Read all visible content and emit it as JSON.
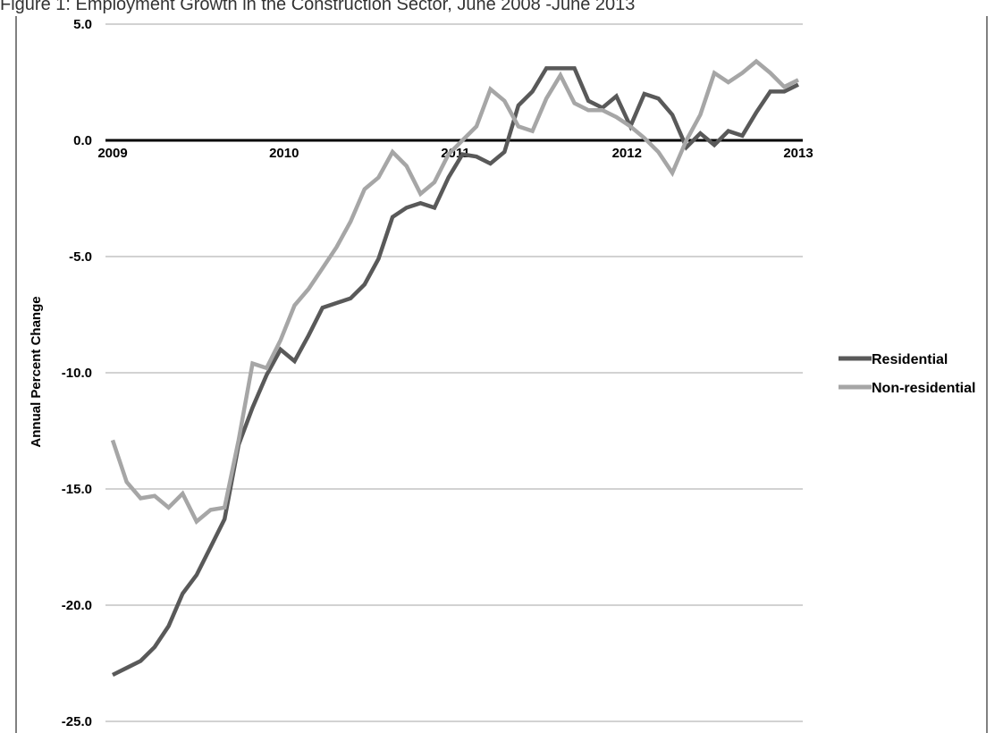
{
  "chart_data": {
    "type": "line",
    "title": "Figure 1: Employment Growth in the Construction Sector, June 2008 -June 2013",
    "xlabel": "",
    "ylabel": "Annual Percent Change",
    "ylim": [
      -25.0,
      5.0
    ],
    "ytick_labels": [
      "5.0",
      "0.0",
      "-5.0",
      "-10.0",
      "-15.0",
      "-20.0",
      "-25.0"
    ],
    "xtick_labels": [
      "2009",
      "2010",
      "2011",
      "2012",
      "2013"
    ],
    "grid": "horizontal",
    "legend_position": "right",
    "x_start_year": 2009,
    "x_end_year": 2013,
    "series": [
      {
        "name": "Residential",
        "color": "#595959",
        "values": [
          -23.0,
          -22.7,
          -22.4,
          -21.8,
          -20.9,
          -19.5,
          -18.7,
          -17.5,
          -16.3,
          -13.1,
          -11.5,
          -10.1,
          -9.0,
          -9.5,
          -8.4,
          -7.2,
          -7.0,
          -6.8,
          -6.2,
          -5.1,
          -3.3,
          -2.9,
          -2.7,
          -2.9,
          -1.6,
          -0.6,
          -0.7,
          -1.0,
          -0.5,
          1.5,
          2.1,
          3.1,
          3.1,
          3.1,
          1.7,
          1.4,
          1.9,
          0.6,
          2.0,
          1.8,
          1.1,
          -0.3,
          0.3,
          -0.2,
          0.4,
          0.2,
          1.2,
          2.1,
          2.1,
          2.4
        ]
      },
      {
        "name": "Non-residential",
        "color": "#a6a6a6",
        "values": [
          -12.9,
          -14.7,
          -15.4,
          -15.3,
          -15.8,
          -15.2,
          -16.4,
          -15.9,
          -15.8,
          -12.9,
          -9.6,
          -9.8,
          -8.6,
          -7.1,
          -6.4,
          -5.5,
          -4.6,
          -3.5,
          -2.1,
          -1.6,
          -0.5,
          -1.1,
          -2.3,
          -1.8,
          -0.6,
          0.0,
          0.6,
          2.2,
          1.7,
          0.6,
          0.4,
          1.8,
          2.8,
          1.6,
          1.3,
          1.3,
          1.0,
          0.6,
          0.1,
          -0.5,
          -1.4,
          0.0,
          1.1,
          2.9,
          2.5,
          2.9,
          3.4,
          2.9,
          2.3,
          2.6
        ]
      }
    ]
  }
}
